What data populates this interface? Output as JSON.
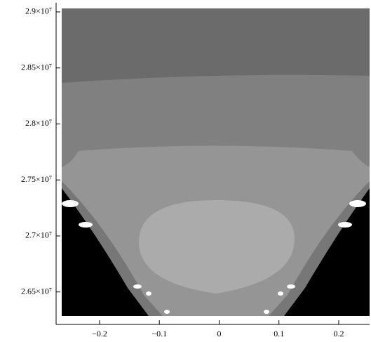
{
  "chart_data": {
    "type": "contour",
    "xlim": [
      -0.27,
      0.25
    ],
    "ylim": [
      26210000,
      29080000
    ],
    "xticks": [
      {
        "value": -0.2,
        "label": "−0.2"
      },
      {
        "value": -0.1,
        "label": "−0.1"
      },
      0,
      0.1,
      0.2
    ],
    "yticks": [
      {
        "value": 26500000,
        "label": "2.65×10⁷"
      },
      {
        "value": 27000000,
        "label": "2.7×10⁷"
      },
      {
        "value": 27500000,
        "label": "2.75×10⁷"
      },
      {
        "value": 28000000,
        "label": "2.8×10⁷"
      },
      {
        "value": 28500000,
        "label": "2.85×10⁷"
      },
      {
        "value": 29000000,
        "label": "2.9×10⁷"
      }
    ]
  }
}
